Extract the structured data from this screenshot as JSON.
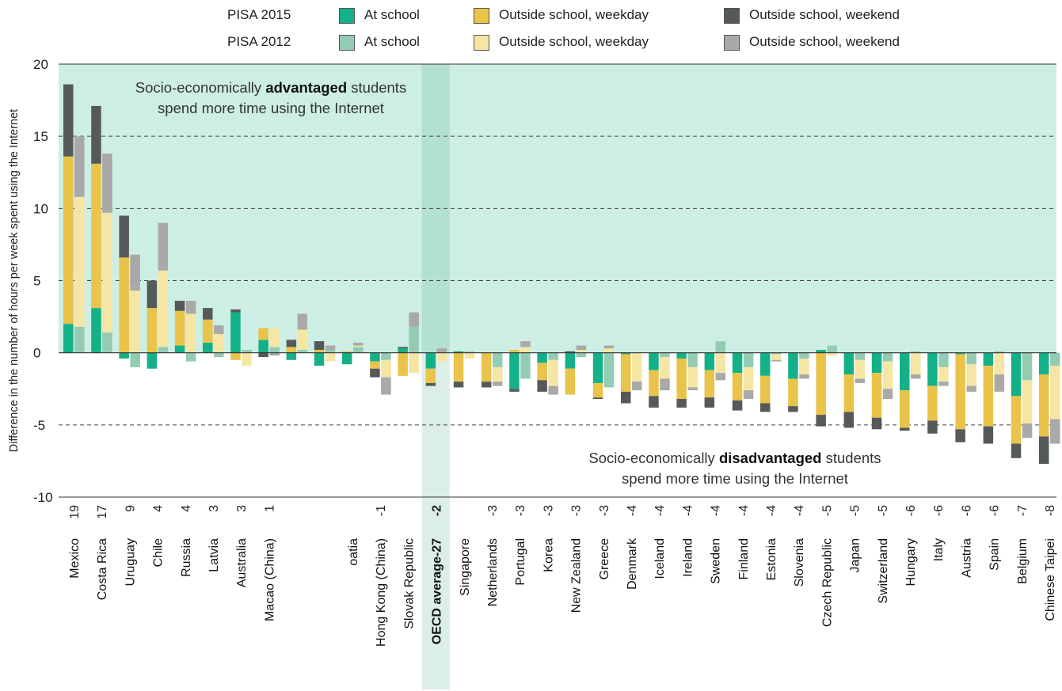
{
  "colors": {
    "positive_region": "#cdeee4",
    "average_band": "#b2e1d2",
    "average_band_light": "#dcefe6",
    "pisa2015": {
      "at_school": "#14b188",
      "weekday": "#e9c34a",
      "weekend": "#555a58"
    },
    "pisa2012": {
      "at_school": "#93cbb3",
      "weekday": "#f5e6a4",
      "weekend": "#a9a9a9"
    }
  },
  "legend": {
    "rows": [
      {
        "title": "PISA 2015",
        "items": [
          "At school",
          "Outside school, weekday",
          "Outside school, weekend"
        ]
      },
      {
        "title": "PISA 2012",
        "items": [
          "At school",
          "Outside school, weekday",
          "Outside school, weekend"
        ]
      }
    ]
  },
  "chart_data": {
    "type": "bar",
    "stacked": true,
    "ylabel": "Difference in the number of hours per week spent using the Internet",
    "ylim": [
      -10,
      20
    ],
    "yticks": [
      "20",
      "15",
      "10",
      "5",
      "0",
      "-5",
      "-10"
    ],
    "grid": "dashed at 5, 10, 15 and -5",
    "annotations": {
      "top": {
        "line1_before": "Socio-economically ",
        "line1_bold": "advantaged",
        "line1_after": " students",
        "line2": "spend more time using the Internet"
      },
      "bottom": {
        "line1_before": "Socio-economically ",
        "line1_bold": "disadvantaged",
        "line1_after": " students",
        "line2": "spend more time using the Internet"
      }
    },
    "categories": [
      {
        "name": "Mexico",
        "total": "19",
        "p2015": [
          2.0,
          11.6,
          5.0
        ],
        "p2012": [
          1.8,
          9.0,
          4.2
        ]
      },
      {
        "name": "Costa Rica",
        "total": "17",
        "p2015": [
          3.1,
          10.0,
          4.0
        ],
        "p2012": [
          1.4,
          8.3,
          4.1
        ]
      },
      {
        "name": "Uruguay",
        "total": "9",
        "p2015": [
          -0.4,
          6.6,
          2.9
        ],
        "p2012": [
          -1.0,
          4.3,
          2.5
        ]
      },
      {
        "name": "Chile",
        "total": "4",
        "p2015": [
          -1.1,
          3.1,
          1.9
        ],
        "p2012": [
          0.4,
          5.3,
          3.3
        ]
      },
      {
        "name": "Russia",
        "total": "4",
        "p2015": [
          0.5,
          2.4,
          0.7
        ],
        "p2012": [
          -0.6,
          2.7,
          0.9
        ]
      },
      {
        "name": "Latvia",
        "total": "3",
        "p2015": [
          0.7,
          1.6,
          0.8
        ],
        "p2012": [
          -0.3,
          1.3,
          0.6
        ]
      },
      {
        "name": "Australia",
        "total": "3",
        "p2015": [
          2.8,
          -0.5,
          0.2
        ],
        "p2012": [
          0.2,
          -0.9,
          0.0
        ]
      },
      {
        "name": "Macao (China)",
        "total": "1",
        "p2015": [
          0.9,
          0.8,
          -0.3
        ],
        "p2012": [
          0.4,
          1.3,
          -0.2
        ]
      },
      {
        "name": "",
        "total": "",
        "p2015": [
          -0.5,
          0.4,
          0.5
        ],
        "p2012": [
          0.2,
          1.4,
          1.1
        ]
      },
      {
        "name": "",
        "total": "",
        "p2015": [
          -0.9,
          0.2,
          0.6
        ],
        "p2012": [
          0.2,
          -0.6,
          0.3
        ]
      },
      {
        "name": "oatia",
        "total": "",
        "p2015": [
          -0.8,
          0.1,
          0.0
        ],
        "p2012": [
          0.4,
          0.1,
          0.2
        ]
      },
      {
        "name": "Hong Kong (China)",
        "total": "-1",
        "p2015": [
          -0.6,
          -0.5,
          -0.6
        ],
        "p2012": [
          -0.5,
          -1.2,
          -1.2
        ]
      },
      {
        "name": "Slovak Republic",
        "total": "",
        "p2015": [
          0.3,
          -1.6,
          0.1
        ],
        "p2012": [
          1.8,
          -1.4,
          1.0
        ]
      },
      {
        "name": "OECD average-27",
        "total": "-2",
        "p2015": [
          -1.1,
          -1.0,
          -0.2
        ],
        "p2012": [
          0.0,
          -0.6,
          0.3
        ]
      },
      {
        "name": "Singapore",
        "total": "",
        "p2015": [
          0.1,
          -2.0,
          -0.4
        ],
        "p2012": [
          0.1,
          -0.4,
          0.0
        ]
      },
      {
        "name": "Netherlands",
        "total": "-3",
        "p2015": [
          0.0,
          -2.0,
          -0.4
        ],
        "p2012": [
          -1.0,
          -1.0,
          -0.3
        ]
      },
      {
        "name": "Portugal",
        "total": "-3",
        "p2015": [
          -2.5,
          0.2,
          -0.2
        ],
        "p2012": [
          -1.8,
          0.4,
          0.4
        ]
      },
      {
        "name": "Korea",
        "total": "-3",
        "p2015": [
          -0.7,
          -1.2,
          -0.8
        ],
        "p2012": [
          -0.5,
          -1.8,
          -0.6
        ]
      },
      {
        "name": "New Zealand",
        "total": "-3",
        "p2015": [
          -1.1,
          -1.8,
          0.1
        ],
        "p2012": [
          -0.3,
          0.2,
          0.3
        ]
      },
      {
        "name": "Greece",
        "total": "-3",
        "p2015": [
          -2.1,
          -1.0,
          -0.1
        ],
        "p2012": [
          -2.4,
          0.3,
          0.2
        ]
      },
      {
        "name": "Denmark",
        "total": "-4",
        "p2015": [
          -0.1,
          -2.6,
          -0.8
        ],
        "p2012": [
          0.0,
          -2.0,
          -0.6
        ]
      },
      {
        "name": "Iceland",
        "total": "-4",
        "p2015": [
          -1.2,
          -1.8,
          -0.8
        ],
        "p2012": [
          -0.3,
          -1.5,
          -0.8
        ]
      },
      {
        "name": "Ireland",
        "total": "-4",
        "p2015": [
          -0.4,
          -2.8,
          -0.6
        ],
        "p2012": [
          -1.0,
          -1.4,
          -0.2
        ]
      },
      {
        "name": "Sweden",
        "total": "-4",
        "p2015": [
          -1.2,
          -1.9,
          -0.7
        ],
        "p2012": [
          0.8,
          -1.4,
          -0.5
        ]
      },
      {
        "name": "Finland",
        "total": "-4",
        "p2015": [
          -1.4,
          -1.9,
          -0.7
        ],
        "p2012": [
          -1.0,
          -1.6,
          -0.6
        ]
      },
      {
        "name": "Estonia",
        "total": "-4",
        "p2015": [
          -1.6,
          -1.9,
          -0.6
        ],
        "p2012": [
          -0.1,
          -0.4,
          -0.1
        ]
      },
      {
        "name": "Slovenia",
        "total": "-4",
        "p2015": [
          -1.8,
          -1.9,
          -0.4
        ],
        "p2012": [
          -0.4,
          -1.1,
          -0.3
        ]
      },
      {
        "name": "Czech Republic",
        "total": "-5",
        "p2015": [
          0.2,
          -4.3,
          -0.8
        ],
        "p2012": [
          0.5,
          -0.2,
          0.0
        ]
      },
      {
        "name": "Japan",
        "total": "-5",
        "p2015": [
          -1.5,
          -2.6,
          -1.1
        ],
        "p2012": [
          -0.5,
          -1.3,
          -0.3
        ]
      },
      {
        "name": "Switzerland",
        "total": "-5",
        "p2015": [
          -1.4,
          -3.1,
          -0.8
        ],
        "p2012": [
          -0.6,
          -1.9,
          -0.7
        ]
      },
      {
        "name": "Hungary",
        "total": "-6",
        "p2015": [
          -2.6,
          -2.6,
          -0.2
        ],
        "p2012": [
          0.1,
          -1.5,
          -0.3
        ]
      },
      {
        "name": "Italy",
        "total": "-6",
        "p2015": [
          -2.3,
          -2.4,
          -0.9
        ],
        "p2012": [
          -1.0,
          -1.0,
          -0.3
        ]
      },
      {
        "name": "Austria",
        "total": "-6",
        "p2015": [
          -0.1,
          -5.2,
          -0.9
        ],
        "p2012": [
          -0.8,
          -1.5,
          -0.4
        ]
      },
      {
        "name": "Spain",
        "total": "-6",
        "p2015": [
          -0.9,
          -4.2,
          -1.2
        ],
        "p2012": [
          0.1,
          -1.5,
          -1.2
        ]
      },
      {
        "name": "Belgium",
        "total": "-7",
        "p2015": [
          -3.0,
          -3.3,
          -1.0
        ],
        "p2012": [
          -1.9,
          -3.0,
          -1.0
        ]
      },
      {
        "name": "Chinese Taipei",
        "total": "-8",
        "p2015": [
          -1.5,
          -4.3,
          -1.9
        ],
        "p2012": [
          -0.9,
          -3.7,
          -1.7
        ]
      }
    ]
  }
}
